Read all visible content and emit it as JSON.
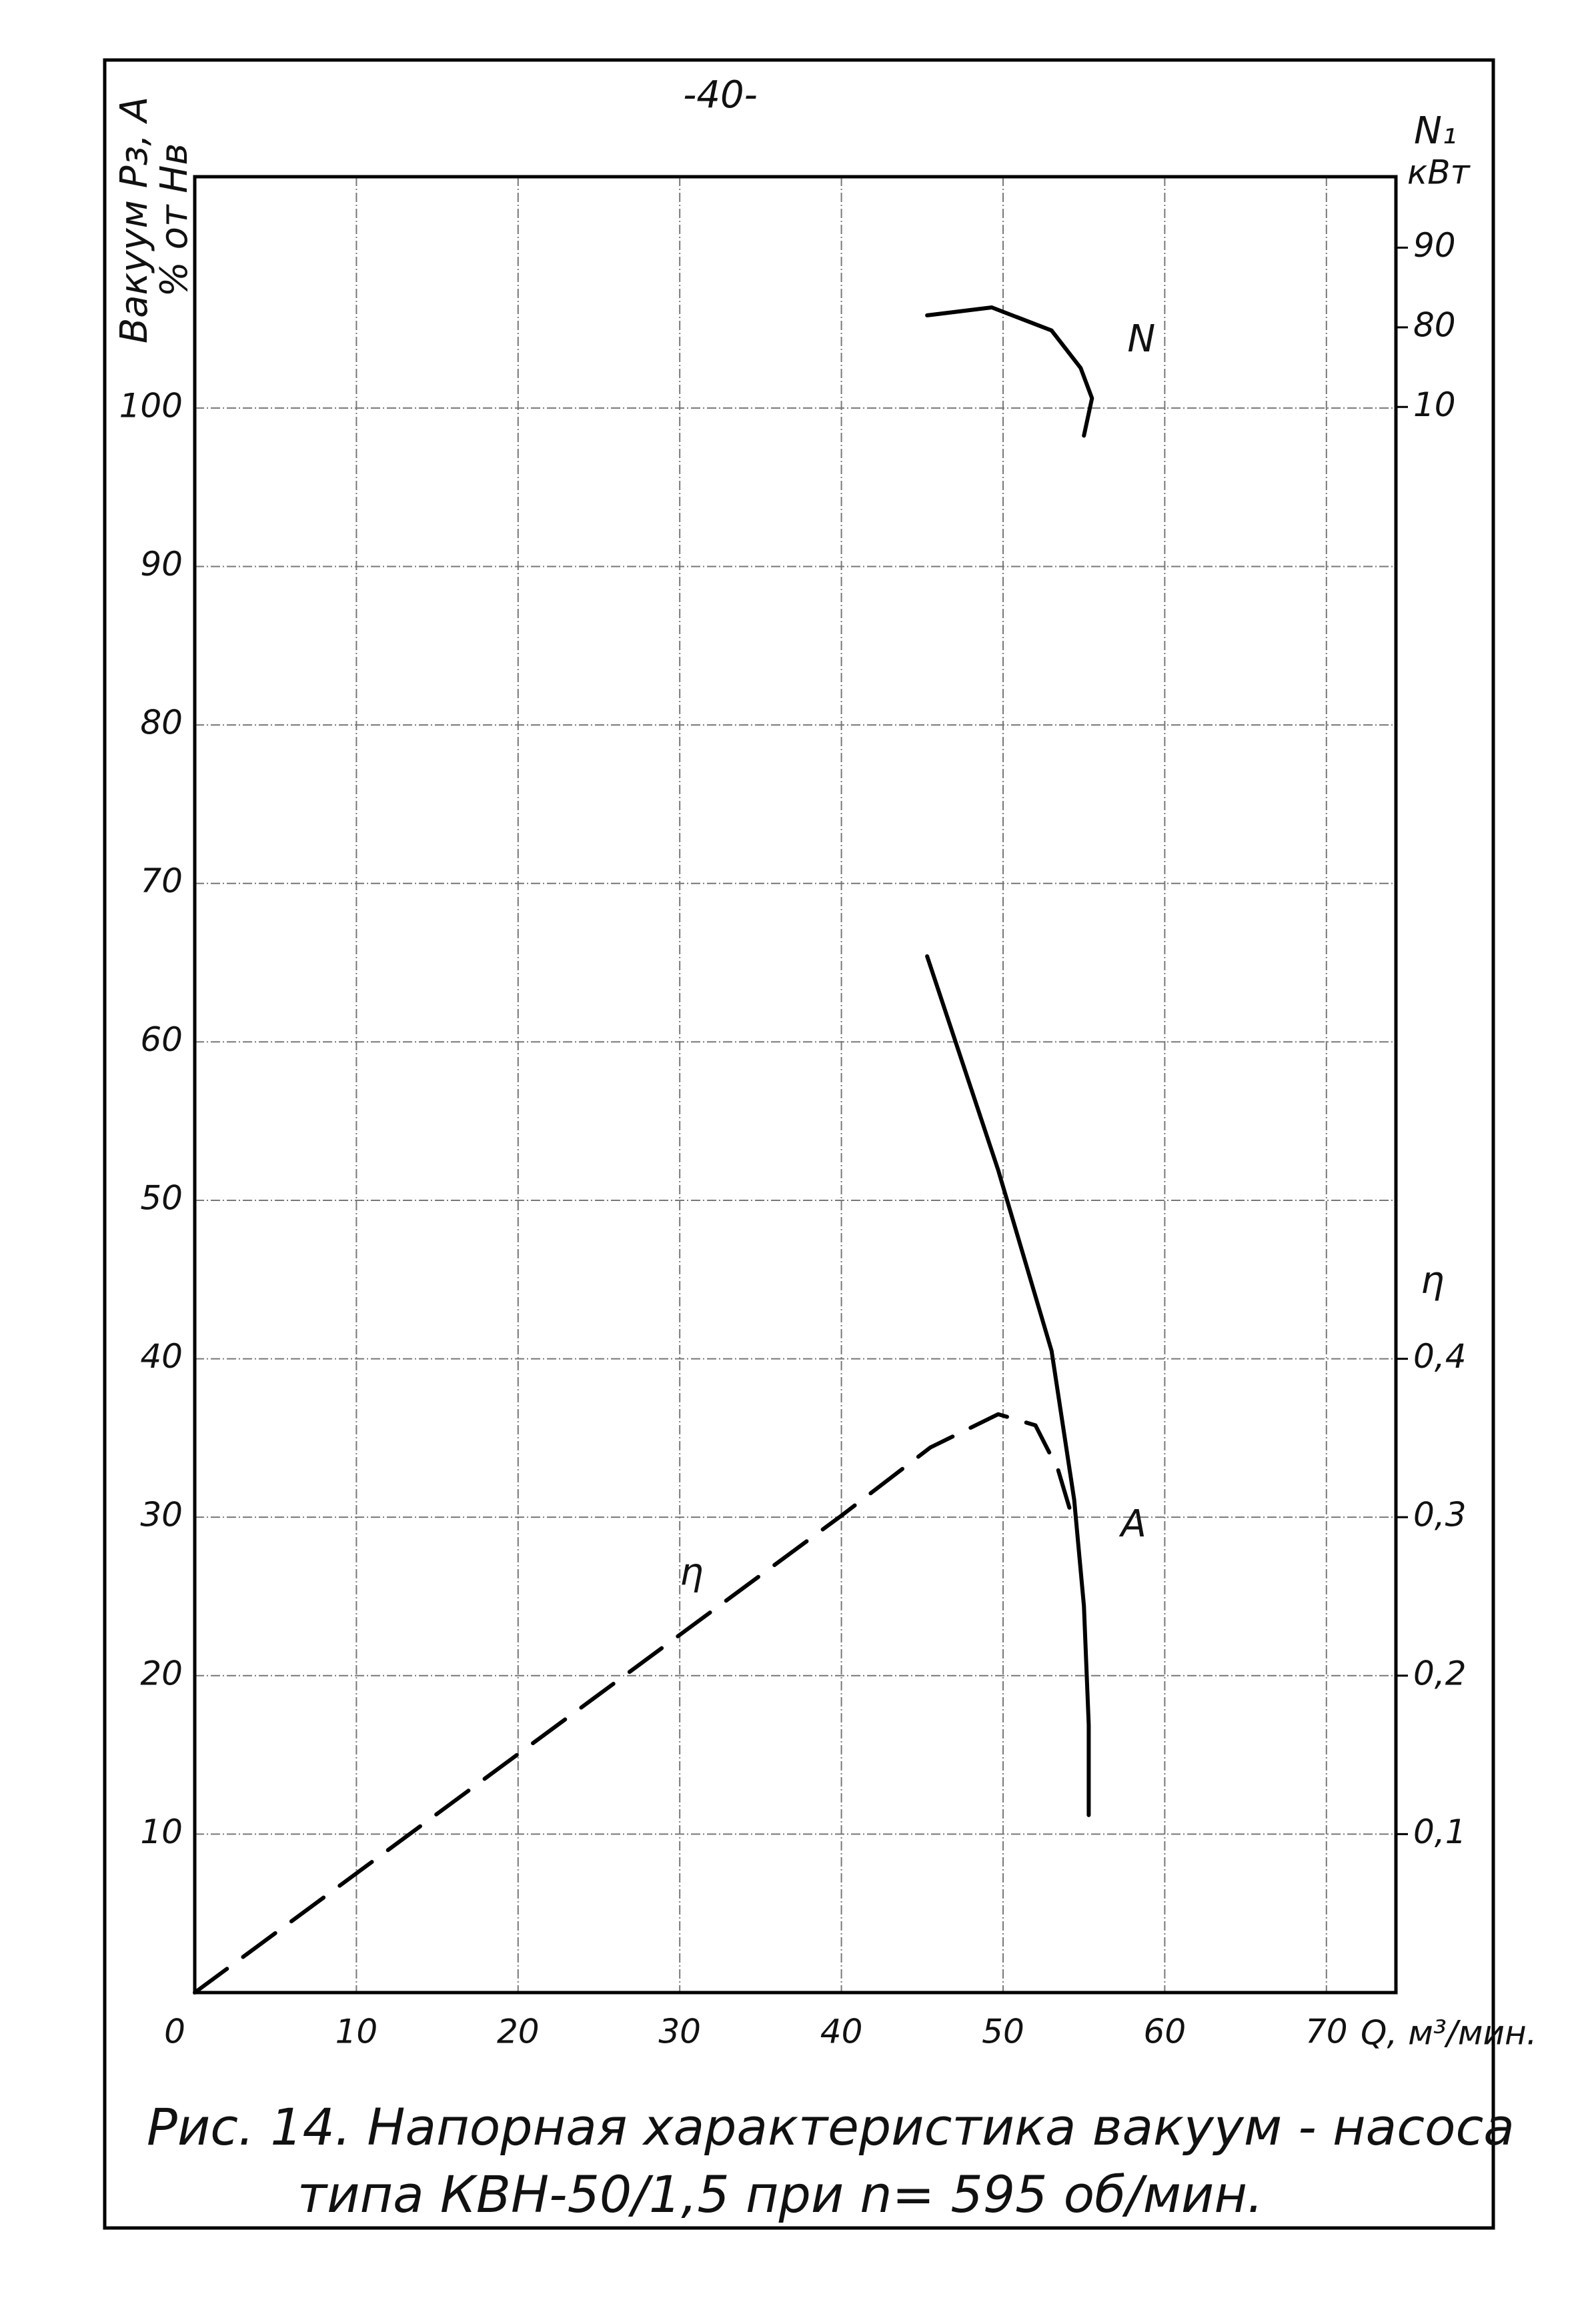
{
  "chart_data": {
    "type": "line",
    "title": "-40-",
    "caption": [
      "Рис. 14. Напорная характеристика вакуум - насоса",
      "типа КВН-50/1,5 при n= 595 об/мин."
    ],
    "x_label": "Q, м³/мин.",
    "y_label": [
      "Вакуум Pз, A",
      "% от Hв"
    ],
    "y2_label": "η",
    "y3_label": [
      "N₁",
      "кВт"
    ],
    "xlim": [
      0,
      74.3
    ],
    "xticks": [
      0,
      10,
      20,
      30,
      40,
      50,
      60,
      70
    ],
    "ylim": [
      0,
      114.6
    ],
    "yticks": [
      10,
      20,
      30,
      40,
      50,
      60,
      70,
      80,
      90,
      100
    ],
    "y2lim": [
      0,
      1.146
    ],
    "y2ticks": [
      {
        "value": 0.1,
        "label": "0,1"
      },
      {
        "value": 0.2,
        "label": "0,2"
      },
      {
        "value": 0.3,
        "label": "0,3"
      },
      {
        "value": 0.4,
        "label": "0,4"
      }
    ],
    "y3lim": [
      -129,
      98.9
    ],
    "y3ticks": [
      90,
      80,
      {
        "value": 70,
        "label": "10"
      }
    ],
    "grid": true,
    "series": [
      {
        "name": "A",
        "axis": "y",
        "color": "#000000",
        "dashed": false,
        "x": [
          45.3,
          49.7,
          53.0,
          54.4,
          55.0,
          55.3,
          55.3
        ],
        "values": [
          65.4,
          51.9,
          40.5,
          31.1,
          24.4,
          16.9,
          11.2
        ]
      },
      {
        "name": "N",
        "axis": "y3",
        "color": "#000000",
        "dashed": false,
        "x": [
          45.3,
          49.3,
          53.0,
          54.8,
          55.5,
          55.0
        ],
        "values": [
          81.5,
          82.5,
          79.6,
          74.9,
          71.1,
          66.4
        ]
      },
      {
        "name": "η",
        "axis": "y2",
        "color": "#000000",
        "dashed": true,
        "x": [
          0,
          40,
          45.5,
          49.7,
          52.0,
          53.4,
          54.1
        ],
        "values": [
          0,
          0.301,
          0.344,
          0.365,
          0.358,
          0.33,
          0.306
        ]
      }
    ]
  }
}
